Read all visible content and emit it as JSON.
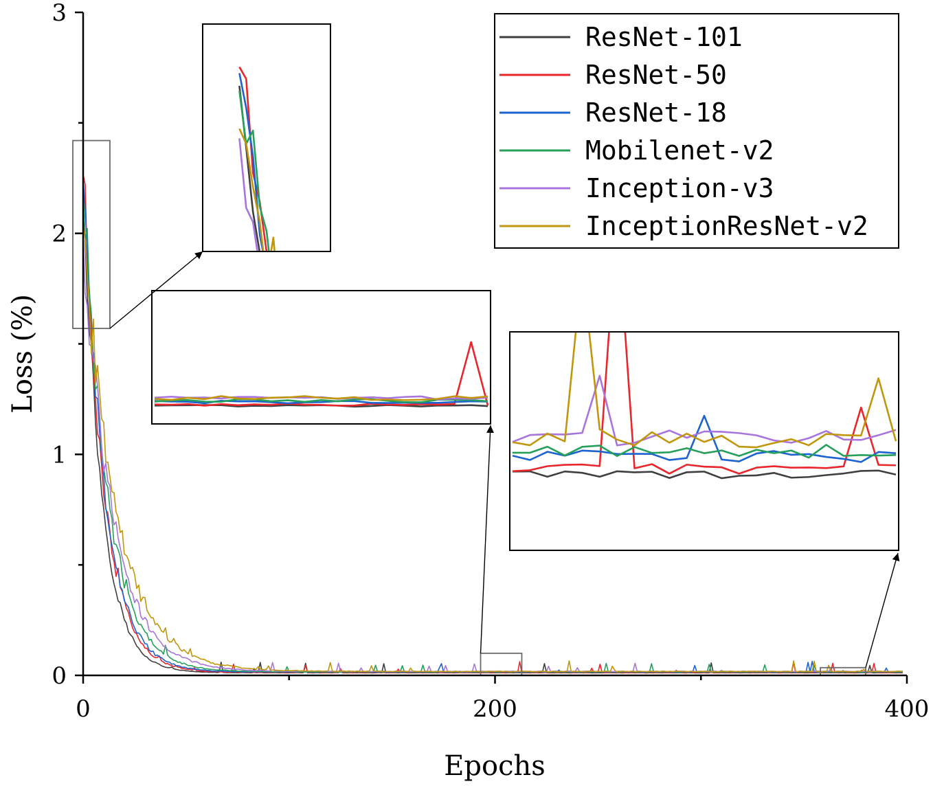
{
  "chart_data": {
    "type": "line",
    "xlabel": "Epochs",
    "ylabel": "Loss (%)",
    "xlim": [
      0,
      400
    ],
    "ylim": [
      0,
      3
    ],
    "x_ticks": [
      0,
      200,
      400
    ],
    "x_minor_ticks": [
      100,
      300
    ],
    "y_ticks": [
      0,
      1,
      2,
      3
    ],
    "y_minor_ticks": [
      0.5,
      1.5,
      2.5
    ],
    "grid": false,
    "legend_position": "top-right",
    "series": [
      {
        "name": "ResNet-101",
        "color": "#3f3f3f",
        "start": 2.25,
        "tau": 9.0,
        "floor": 0.012,
        "noise": 0.05
      },
      {
        "name": "ResNet-50",
        "color": "#e8262b",
        "start": 2.32,
        "tau": 10.0,
        "floor": 0.013,
        "noise": 0.06
      },
      {
        "name": "ResNet-18",
        "color": "#1c63d1",
        "start": 2.28,
        "tau": 10.5,
        "floor": 0.015,
        "noise": 0.06
      },
      {
        "name": "Mobilenet-v2",
        "color": "#25a05a",
        "start": 2.2,
        "tau": 12.0,
        "floor": 0.016,
        "noise": 0.07
      },
      {
        "name": "Inception-v3",
        "color": "#a874dd",
        "start": 2.0,
        "tau": 14.0,
        "floor": 0.018,
        "noise": 0.07
      },
      {
        "name": "InceptionResNet-v2",
        "color": "#c2960b",
        "start": 2.02,
        "tau": 16.0,
        "floor": 0.018,
        "noise": 0.08
      }
    ],
    "zoom_regions": [
      {
        "x_range": [
          -5,
          13
        ],
        "y_range": [
          1.57,
          2.42
        ]
      },
      {
        "x_range": [
          193,
          213
        ],
        "y_range": [
          0,
          0.1
        ]
      },
      {
        "x_range": [
          358,
          380
        ],
        "y_range": [
          0,
          0.035
        ]
      }
    ]
  }
}
